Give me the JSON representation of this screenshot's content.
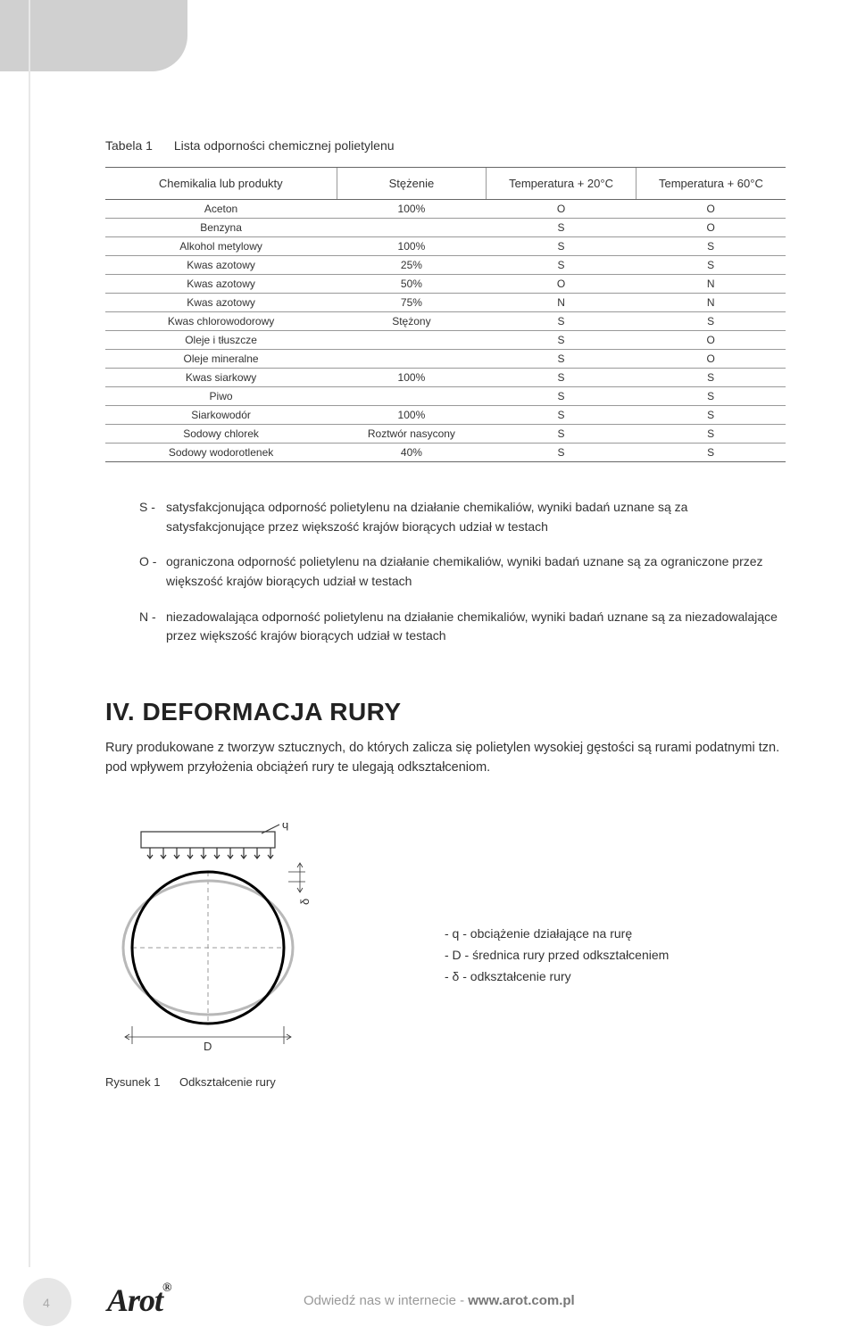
{
  "table": {
    "caption_label": "Tabela 1",
    "caption_text": "Lista odporności chemicznej polietylenu",
    "headers": [
      "Chemikalia lub produkty",
      "Stężenie",
      "Temperatura + 20°C",
      "Temperatura + 60°C"
    ],
    "rows": [
      [
        "Aceton",
        "100%",
        "O",
        "O"
      ],
      [
        "Benzyna",
        "",
        "S",
        "O"
      ],
      [
        "Alkohol metylowy",
        "100%",
        "S",
        "S"
      ],
      [
        "Kwas azotowy",
        "25%",
        "S",
        "S"
      ],
      [
        "Kwas azotowy",
        "50%",
        "O",
        "N"
      ],
      [
        "Kwas azotowy",
        "75%",
        "N",
        "N"
      ],
      [
        "Kwas chlorowodorowy",
        "Stężony",
        "S",
        "S"
      ],
      [
        "Oleje i tłuszcze",
        "",
        "S",
        "O"
      ],
      [
        "Oleje mineralne",
        "",
        "S",
        "O"
      ],
      [
        "Kwas siarkowy",
        "100%",
        "S",
        "S"
      ],
      [
        "Piwo",
        "",
        "S",
        "S"
      ],
      [
        "Siarkowodór",
        "100%",
        "S",
        "S"
      ],
      [
        "Sodowy chlorek",
        "Roztwór nasycony",
        "S",
        "S"
      ],
      [
        "Sodowy wodorotlenek",
        "40%",
        "S",
        "S"
      ]
    ],
    "border_color": "#666666",
    "row_border_color": "#999999",
    "font_size": 12
  },
  "legend": {
    "items": [
      {
        "key": "S -",
        "text": "satysfakcjonująca odporność polietylenu na działanie chemikaliów, wyniki badań uznane są za satysfakcjonujące przez większość krajów biorących udział w testach"
      },
      {
        "key": "O -",
        "text": "ograniczona odporność polietylenu na działanie chemikaliów, wyniki badań uznane są za ograniczone przez większość krajów biorących udział w testach"
      },
      {
        "key": "N -",
        "text": "niezadowalająca odporność polietylenu na działanie chemikaliów, wyniki badań uznane są za niezadowalające przez większość krajów biorących udział w testach"
      }
    ]
  },
  "section": {
    "heading": "IV.  DEFORMACJA RURY",
    "body": "Rury produkowane z tworzyw sztucznych, do których zalicza się polietylen wysokiej gęstości są rurami podatnymi tzn. pod wpływem przyłożenia obciążeń rury te ulegają odkształceniom."
  },
  "diagram": {
    "type": "infographic",
    "q_label": "q",
    "delta_label": "δ",
    "d_label": "D",
    "circle_color": "#000000",
    "circle_stroke_width": 3,
    "ellipse_color": "#b8b8b8",
    "ellipse_stroke_width": 3,
    "dash_color": "#999999",
    "arrow_color": "#333333",
    "background_color": "#ffffff",
    "legend_lines": [
      "- q - obciążenie działające na rurę",
      "- D - średnica rury przed odkształceniem",
      "- δ - odkształcenie rury"
    ],
    "caption_label": "Rysunek 1",
    "caption_text": "Odkształcenie rury"
  },
  "footer": {
    "page": "4",
    "logo": "Arot",
    "logo_mark": "®",
    "text_prefix": "Odwiedź nas w internecie - ",
    "url": "www.arot.com.pl"
  },
  "colors": {
    "header_tab": "#d0d0d0",
    "text": "#333333",
    "footer_text": "#999999"
  }
}
